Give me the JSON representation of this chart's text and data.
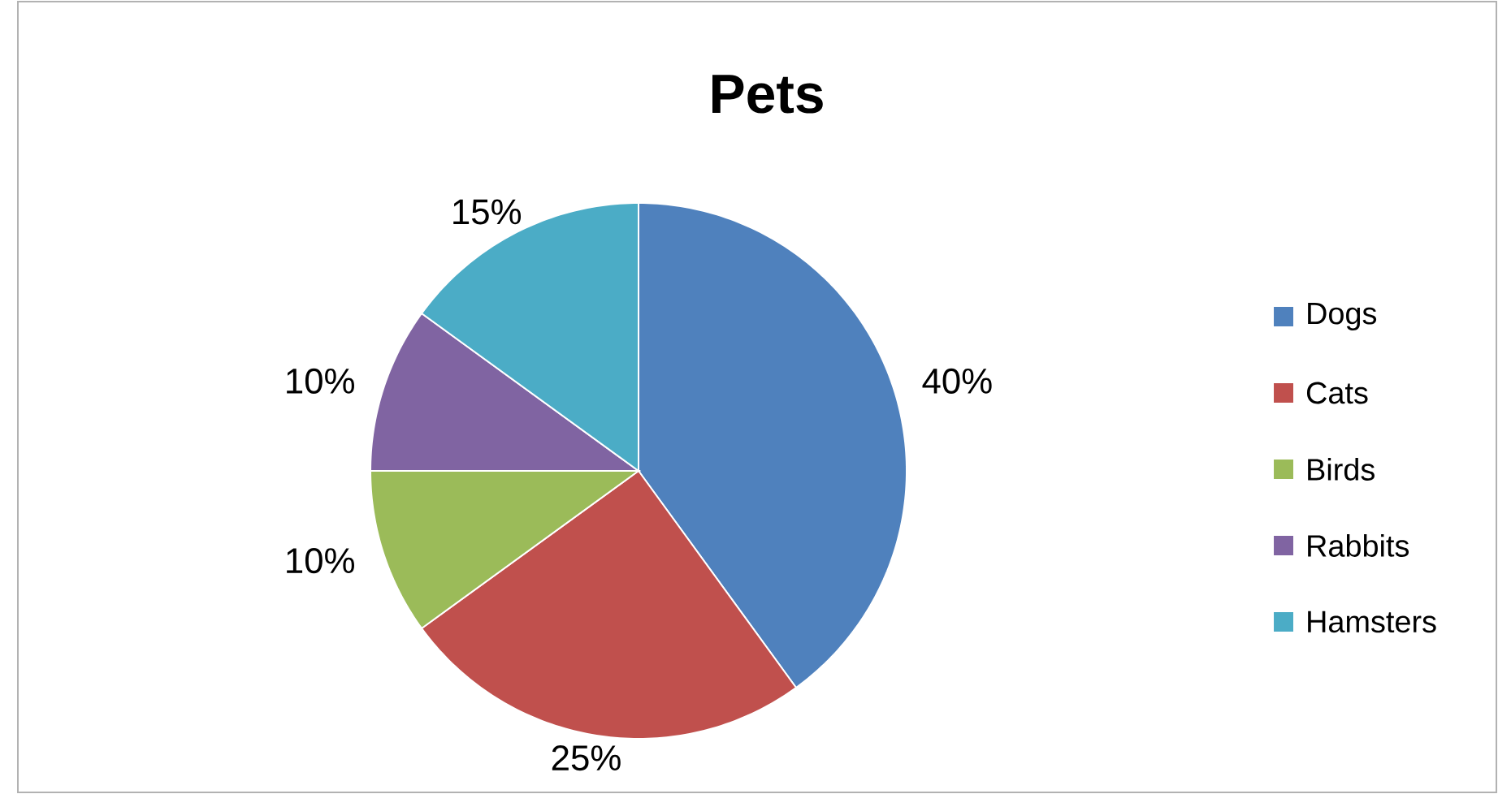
{
  "chart_data": {
    "type": "pie",
    "title": "Pets",
    "categories": [
      "Dogs",
      "Cats",
      "Birds",
      "Rabbits",
      "Hamsters"
    ],
    "values": [
      40,
      25,
      10,
      10,
      15
    ],
    "colors": [
      "#4f81bd",
      "#c0504d",
      "#9bbb59",
      "#8064a2",
      "#4bacc6"
    ],
    "value_labels": [
      "40%",
      "25%",
      "10%",
      "10%",
      "15%"
    ],
    "legend": "right"
  }
}
